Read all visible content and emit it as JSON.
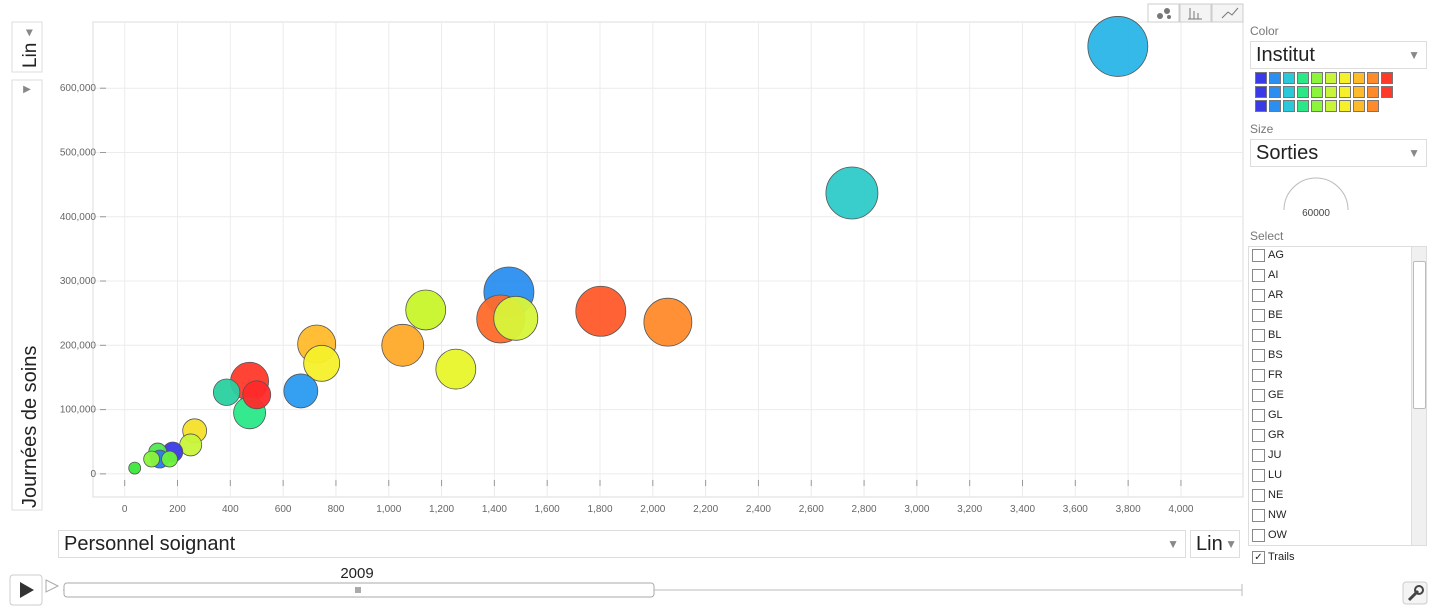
{
  "chart_data": {
    "type": "bubble",
    "y_label": "Journées de soins",
    "x_label": "Personnel soignant",
    "x": [
      3761,
      2754,
      1455,
      1481,
      1424,
      1803,
      2057,
      1140,
      1053,
      1254,
      727,
      746,
      667,
      473,
      500,
      473,
      386,
      265,
      250,
      182,
      125,
      133,
      102,
      170,
      38
    ],
    "values": [
      665000,
      437000,
      283000,
      242000,
      241000,
      253000,
      236000,
      255000,
      200000,
      163000,
      202000,
      172000,
      129000,
      144000,
      123000,
      95000,
      127000,
      67000,
      45000,
      34000,
      34000,
      23000,
      23000,
      23000,
      9000
    ],
    "sizes": [
      52700,
      39600,
      36600,
      28400,
      33700,
      36600,
      33700,
      23400,
      25800,
      23400,
      21200,
      19000,
      16900,
      21200,
      11500,
      15000,
      10300,
      8400,
      7100,
      5900,
      4700,
      4700,
      3700,
      3700,
      2100
    ],
    "colors": [
      "#29b5e8",
      "#2ecac8",
      "#2a8ff0",
      "#d8f53a",
      "#ff6a2a",
      "#ff5a2a",
      "#ff8a2a",
      "#c8f52a",
      "#ffaa2a",
      "#e8f52a",
      "#ffbb2a",
      "#f5f02a",
      "#2a9af0",
      "#ff3a2a",
      "#ff2a2a",
      "#2ae888",
      "#2ad0a0",
      "#f5e02a",
      "#c8f53a",
      "#3a3ae8",
      "#50e850",
      "#2a7af0",
      "#8af53a",
      "#6af53a",
      "#3ae83a"
    ],
    "size_ref": 60000,
    "xlim": [
      -120,
      4235
    ],
    "ylim": [
      -36000,
      703000
    ],
    "xticks": [
      0,
      200,
      400,
      600,
      800,
      {
        "value": 1000,
        "label": "1,000"
      },
      {
        "value": 1200,
        "label": "1,200"
      },
      {
        "value": 1400,
        "label": "1,400"
      },
      {
        "value": 1600,
        "label": "1,600"
      },
      {
        "value": 1800,
        "label": "1,800"
      },
      {
        "value": 2000,
        "label": "2,000"
      },
      {
        "value": 2200,
        "label": "2,200"
      },
      {
        "value": 2400,
        "label": "2,400"
      },
      {
        "value": 2600,
        "label": "2,600"
      },
      {
        "value": 2800,
        "label": "2,800"
      },
      {
        "value": 3000,
        "label": "3,000"
      },
      {
        "value": 3200,
        "label": "3,200"
      },
      {
        "value": 3400,
        "label": "3,400"
      },
      {
        "value": 3600,
        "label": "3,600"
      },
      {
        "value": 3800,
        "label": "3,800"
      },
      {
        "value": 4000,
        "label": "4,000"
      }
    ],
    "yticks": [
      0,
      {
        "value": 100000,
        "label": "100,000"
      },
      {
        "value": 200000,
        "label": "200,000"
      },
      {
        "value": 300000,
        "label": "300,000"
      },
      {
        "value": 400000,
        "label": "400,000"
      },
      {
        "value": 500000,
        "label": "500,000"
      },
      {
        "value": 600000,
        "label": "600,000"
      }
    ],
    "grid": true
  },
  "controls": {
    "y_scale": "Lin",
    "x_scale": "Lin",
    "color_label": "Color",
    "color_by": "Institut",
    "size_label": "Size",
    "size_by": "Sorties",
    "select_label": "Select",
    "select_items": [
      "AG",
      "AI",
      "AR",
      "BE",
      "BL",
      "BS",
      "FR",
      "GE",
      "GL",
      "GR",
      "JU",
      "LU",
      "NE",
      "NW",
      "OW"
    ],
    "trails_label": "Trails",
    "trails": true,
    "time": 2009
  }
}
